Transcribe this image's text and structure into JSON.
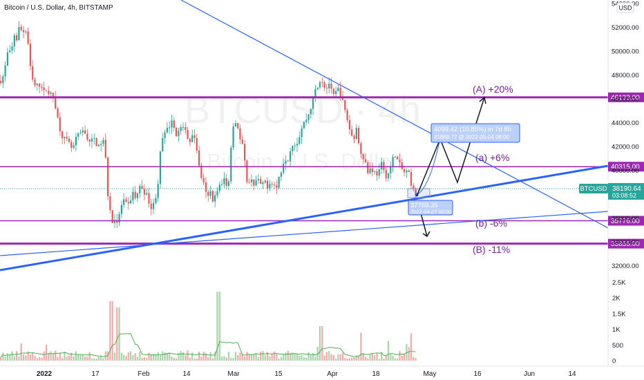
{
  "header": {
    "title": "Bitcoin / U.S. Dollar, 4h, BITSTAMP",
    "currency": "USD"
  },
  "watermark": {
    "symbol": "BTCUSD · 4h",
    "name": "Bitcoin / U.S. Dollar"
  },
  "colors": {
    "up": "#26a69a",
    "down": "#ef5350",
    "level": "#9c27b0",
    "trend": "#2962ff",
    "label_text": "#7b1fa2",
    "path": "#131722",
    "ma": "#4caf50",
    "axis_text": "#131722"
  },
  "chart_data": {
    "type": "candlestick",
    "title": "Bitcoin / U.S. Dollar, 4h, BITSTAMP",
    "x_ticks": [
      "2022",
      "17",
      "Feb",
      "14",
      "Mar",
      "15",
      "Apr",
      "18",
      "May",
      "16",
      "Jun",
      "14"
    ],
    "price_axis": {
      "range": [
        31400,
        54300
      ],
      "ticks": [
        "54000.00",
        "52000.00",
        "50000.00",
        "48000.00",
        "46000.00",
        "44000.00",
        "42000.00",
        "40000.00",
        "38000.00",
        "36000.00",
        "34000.00",
        "32000.00"
      ]
    },
    "volume_axis": {
      "range": [
        0,
        2600
      ],
      "ticks": [
        "2.5K",
        "2K",
        "1.5K",
        "1K",
        "500",
        "0"
      ]
    },
    "price_path": [
      [
        0,
        47500
      ],
      [
        4,
        47800
      ],
      [
        8,
        48800
      ],
      [
        12,
        50200
      ],
      [
        16,
        49600
      ],
      [
        20,
        51500
      ],
      [
        24,
        51000
      ],
      [
        28,
        52100
      ],
      [
        32,
        51600
      ],
      [
        37,
        51800
      ],
      [
        41,
        50500
      ],
      [
        44,
        48500
      ],
      [
        48,
        47300
      ],
      [
        52,
        47000
      ],
      [
        56,
        47200
      ],
      [
        60,
        47200
      ],
      [
        64,
        46500
      ],
      [
        68,
        46900
      ],
      [
        72,
        46300
      ],
      [
        76,
        46400
      ],
      [
        80,
        45500
      ],
      [
        84,
        44200
      ],
      [
        88,
        43200
      ],
      [
        92,
        42700
      ],
      [
        96,
        42500
      ],
      [
        100,
        42200
      ],
      [
        104,
        41800
      ],
      [
        108,
        42100
      ],
      [
        112,
        43100
      ],
      [
        116,
        42900
      ],
      [
        120,
        43300
      ],
      [
        124,
        43100
      ],
      [
        128,
        42500
      ],
      [
        132,
        42400
      ],
      [
        136,
        42700
      ],
      [
        140,
        42200
      ],
      [
        144,
        41800
      ],
      [
        148,
        42800
      ],
      [
        152,
        41800
      ],
      [
        155,
        38500
      ],
      [
        158,
        37200
      ],
      [
        161,
        35900
      ],
      [
        164,
        35500
      ],
      [
        167,
        36200
      ],
      [
        170,
        35200
      ],
      [
        173,
        36600
      ],
      [
        176,
        37000
      ],
      [
        180,
        37500
      ],
      [
        184,
        36900
      ],
      [
        188,
        37400
      ],
      [
        192,
        38200
      ],
      [
        196,
        37600
      ],
      [
        200,
        38300
      ],
      [
        204,
        38700
      ],
      [
        208,
        38300
      ],
      [
        212,
        37900
      ],
      [
        216,
        37400
      ],
      [
        220,
        36600
      ],
      [
        224,
        37600
      ],
      [
        228,
        38500
      ],
      [
        232,
        41400
      ],
      [
        236,
        42900
      ],
      [
        240,
        43100
      ],
      [
        244,
        43700
      ],
      [
        248,
        44000
      ],
      [
        252,
        43800
      ],
      [
        256,
        42600
      ],
      [
        260,
        43700
      ],
      [
        264,
        43300
      ],
      [
        268,
        43700
      ],
      [
        272,
        42600
      ],
      [
        276,
        42400
      ],
      [
        280,
        43100
      ],
      [
        284,
        42200
      ],
      [
        288,
        40300
      ],
      [
        292,
        39300
      ],
      [
        296,
        38600
      ],
      [
        300,
        37500
      ],
      [
        304,
        38300
      ],
      [
        308,
        37600
      ],
      [
        312,
        37800
      ],
      [
        316,
        38800
      ],
      [
        320,
        38500
      ],
      [
        324,
        39400
      ],
      [
        328,
        38600
      ],
      [
        332,
        39500
      ],
      [
        336,
        43800
      ],
      [
        340,
        44100
      ],
      [
        344,
        43700
      ],
      [
        348,
        42400
      ],
      [
        352,
        41900
      ],
      [
        356,
        39500
      ],
      [
        360,
        38800
      ],
      [
        364,
        39400
      ],
      [
        368,
        38700
      ],
      [
        372,
        39300
      ],
      [
        376,
        38900
      ],
      [
        380,
        38700
      ],
      [
        384,
        39100
      ],
      [
        388,
        38600
      ],
      [
        392,
        39200
      ],
      [
        396,
        38800
      ],
      [
        400,
        38500
      ],
      [
        404,
        39500
      ],
      [
        408,
        40200
      ],
      [
        412,
        41200
      ],
      [
        416,
        40800
      ],
      [
        420,
        41700
      ],
      [
        424,
        42400
      ],
      [
        428,
        42100
      ],
      [
        432,
        42700
      ],
      [
        436,
        43500
      ],
      [
        440,
        44000
      ],
      [
        444,
        44400
      ],
      [
        448,
        44900
      ],
      [
        452,
        45800
      ],
      [
        456,
        46700
      ],
      [
        460,
        47000
      ],
      [
        464,
        47800
      ],
      [
        468,
        47300
      ],
      [
        472,
        46800
      ],
      [
        476,
        47400
      ],
      [
        480,
        46500
      ],
      [
        484,
        46100
      ],
      [
        488,
        46900
      ],
      [
        492,
        46600
      ],
      [
        496,
        45700
      ],
      [
        500,
        44800
      ],
      [
        504,
        44000
      ],
      [
        508,
        42900
      ],
      [
        512,
        42800
      ],
      [
        516,
        43400
      ],
      [
        520,
        42100
      ],
      [
        524,
        41300
      ],
      [
        528,
        40900
      ],
      [
        532,
        39800
      ],
      [
        536,
        40200
      ],
      [
        540,
        40000
      ],
      [
        544,
        39700
      ],
      [
        548,
        39800
      ],
      [
        552,
        40500
      ],
      [
        556,
        39800
      ],
      [
        560,
        39500
      ],
      [
        564,
        40000
      ],
      [
        568,
        40900
      ],
      [
        572,
        41400
      ],
      [
        576,
        40700
      ],
      [
        580,
        40300
      ],
      [
        584,
        39800
      ],
      [
        588,
        39900
      ],
      [
        592,
        39600
      ],
      [
        596,
        38300
      ],
      [
        600,
        38200
      ],
      [
        603,
        38190
      ]
    ],
    "horizontal_levels": [
      {
        "price": "46133.00",
        "value": 46133,
        "weight": "thick"
      },
      {
        "price": "40315.00",
        "value": 40315,
        "weight": "thin"
      },
      {
        "price": "35776.00",
        "value": 35776,
        "weight": "thin"
      },
      {
        "price": "33855.00",
        "value": 33855,
        "weight": "thick"
      }
    ],
    "scenario_labels": [
      "(A) +20%",
      "(a) +6%",
      "(b) -6%",
      "(B) -11%"
    ],
    "last_price": {
      "label": "BTCUSD",
      "price": "38190.64",
      "countdown": "03:08:52"
    },
    "measure_box": {
      "line1": "4099.42 (10.85%) in 7d 8h",
      "line2": "41868.77 @ 2022-05-04 08:00"
    },
    "low_box": {
      "line1": "37769.35",
      "line2": "2022-04-27 00:00"
    }
  }
}
